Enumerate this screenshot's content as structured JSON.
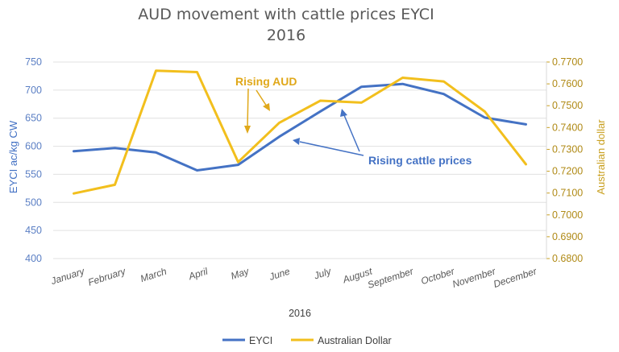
{
  "chart_data": {
    "type": "line",
    "title": "AUD movement with cattle prices EYCI",
    "subtitle": "2016",
    "xlabel": "2016",
    "ylabel_left": "EYCI ac/kg CW",
    "ylabel_right": "Australian dollar",
    "categories": [
      "January",
      "February",
      "March",
      "April",
      "May",
      "June",
      "July",
      "August",
      "September",
      "October",
      "November",
      "December"
    ],
    "y_left": {
      "min": 400,
      "max": 750,
      "ticks": [
        "750",
        "700",
        "650",
        "600",
        "550",
        "500",
        "450",
        "400"
      ]
    },
    "y_right": {
      "min": 0.68,
      "max": 0.77,
      "ticks": [
        "0.7700",
        "0.7600",
        "0.7500",
        "0.7400",
        "0.7300",
        "0.7200",
        "0.7100",
        "0.7000",
        "0.6900",
        "0.6800"
      ]
    },
    "series": [
      {
        "name": "EYCI",
        "axis": "left",
        "color": "#4472c4",
        "values": [
          591,
          597,
          589,
          557,
          567,
          617,
          662,
          706,
          711,
          693,
          651,
          639
        ]
      },
      {
        "name": "Australian Dollar",
        "axis": "right",
        "color": "#f2bf1d",
        "values": [
          0.7098,
          0.7138,
          0.766,
          0.7654,
          0.7242,
          0.7422,
          0.7523,
          0.7514,
          0.7628,
          0.7611,
          0.7473,
          0.7232
        ]
      }
    ],
    "grid": true,
    "legend": "bottom",
    "annotations": [
      {
        "text": "Rising AUD",
        "color": "#e0a81a"
      },
      {
        "text": "Rising cattle prices",
        "color": "#4472c4"
      }
    ]
  }
}
